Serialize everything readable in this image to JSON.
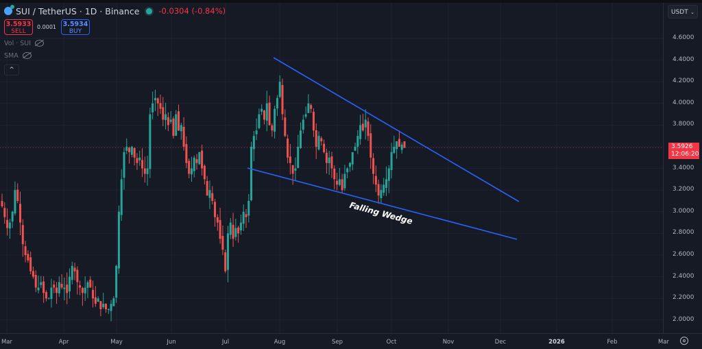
{
  "header": {
    "symbol": "SUI / TetherUS · 1D · Binance",
    "change": "-0.0304 (-0.84%)",
    "sell_price": "3.5933",
    "sell_label": "SELL",
    "spread": "0.0001",
    "buy_price": "3.5934",
    "buy_label": "BUY"
  },
  "indicators": [
    {
      "label": "Vol · SUI"
    },
    {
      "label": "SMA"
    }
  ],
  "collapse_icon": "^",
  "currency": {
    "label": "USDT"
  },
  "colors": {
    "up": "#26a69a",
    "down": "#ef5350",
    "trendline": "#2962ff",
    "last_price_bg": "#f23645",
    "background": "#161a25"
  },
  "last_price": {
    "price": "3.5926",
    "countdown": "12:06:20"
  },
  "annotation": {
    "text": "Falling Wedge"
  },
  "chart_data": {
    "type": "candlestick",
    "title": "SUI / TetherUS · 1D · Binance",
    "ylim": [
      1.88,
      4.75
    ],
    "y_ticks": [
      "4.6000",
      "4.4000",
      "4.2000",
      "4.0000",
      "3.8000",
      "3.6000",
      "3.4000",
      "3.2000",
      "3.0000",
      "2.8000",
      "2.6000",
      "2.4000",
      "2.2000",
      "2.0000"
    ],
    "x_ticks": [
      "Mar",
      "Apr",
      "May",
      "Jun",
      "Jul",
      "Aug",
      "Sep",
      "Oct",
      "Nov",
      "Dec",
      "2026",
      "Feb",
      "Mar"
    ],
    "x_tick_pos": [
      10,
      93,
      170,
      250,
      329,
      408,
      492,
      571,
      654,
      730,
      812,
      893,
      968
    ],
    "grid": true,
    "trendlines": [
      {
        "name": "upper",
        "from": [
          399,
          84
        ],
        "to": [
          757,
          294
        ]
      },
      {
        "name": "lower",
        "from": [
          361,
          245
        ],
        "to": [
          754,
          349
        ]
      }
    ],
    "annotations": [
      {
        "text": "Falling Wedge",
        "x": 512,
        "y": 292
      }
    ],
    "close_path": [
      3.05,
      2.95,
      2.85,
      2.9,
      3.0,
      3.2,
      3.1,
      2.9,
      2.7,
      2.6,
      2.55,
      2.45,
      2.4,
      2.3,
      2.3,
      2.35,
      2.25,
      2.2,
      2.2,
      2.3,
      2.3,
      2.25,
      2.35,
      2.3,
      2.3,
      2.25,
      2.4,
      2.5,
      2.45,
      2.35,
      2.3,
      2.25,
      2.3,
      2.35,
      2.3,
      2.2,
      2.15,
      2.2,
      2.1,
      2.15,
      2.1,
      2.1,
      2.15,
      2.2,
      2.5,
      3.0,
      3.3,
      3.55,
      3.6,
      3.55,
      3.6,
      3.5,
      3.45,
      3.5,
      3.4,
      3.35,
      3.4,
      3.9,
      4.0,
      4.05,
      4.0,
      3.95,
      3.85,
      3.9,
      3.8,
      3.85,
      3.7,
      3.9,
      3.75,
      3.8,
      3.6,
      3.45,
      3.35,
      3.4,
      3.5,
      3.45,
      3.55,
      3.4,
      3.3,
      3.15,
      3.2,
      3.1,
      2.95,
      2.9,
      2.75,
      2.65,
      2.45,
      2.8,
      2.9,
      2.75,
      2.85,
      2.8,
      2.9,
      3.0,
      2.95,
      3.1,
      3.6,
      3.7,
      3.75,
      3.9,
      3.95,
      3.85,
      4.0,
      3.8,
      3.75,
      3.95,
      4.05,
      4.2,
      3.9,
      3.7,
      3.5,
      3.45,
      3.35,
      3.4,
      3.6,
      3.75,
      3.85,
      3.9,
      4.0,
      3.95,
      3.75,
      3.6,
      3.7,
      3.65,
      3.55,
      3.45,
      3.5,
      3.4,
      3.3,
      3.25,
      3.3,
      3.2,
      3.35,
      3.4,
      3.45,
      3.55,
      3.6,
      3.7,
      3.8,
      3.75,
      3.85,
      3.7,
      3.5,
      3.35,
      3.25,
      3.15,
      3.2,
      3.25,
      3.3,
      3.4,
      3.55,
      3.6,
      3.65,
      3.6,
      3.62,
      3.59
    ]
  }
}
